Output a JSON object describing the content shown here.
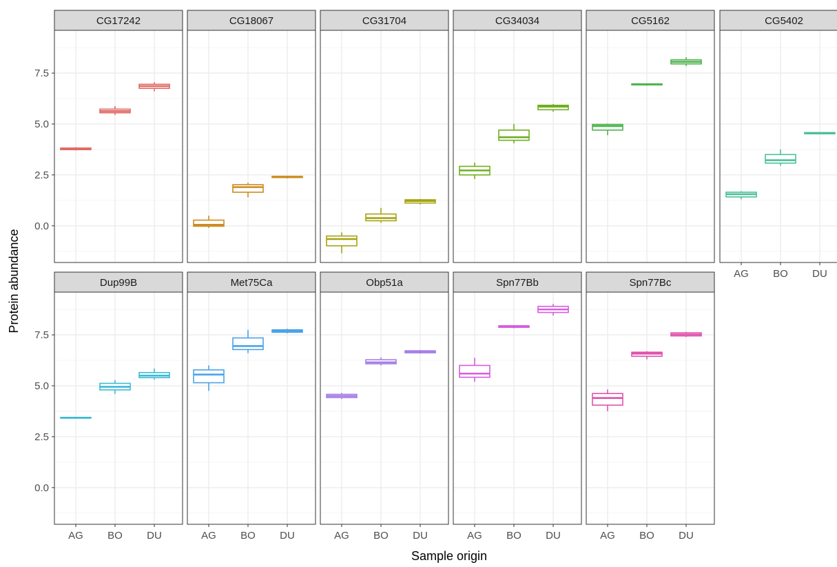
{
  "chart_data": {
    "type": "boxplot",
    "xlabel": "Sample origin",
    "ylabel": "Protein abundance",
    "categories": [
      "AG",
      "BO",
      "DU"
    ],
    "ylim": [
      -1.8,
      9.6
    ],
    "yticks": [
      0.0,
      2.5,
      5.0,
      7.5
    ],
    "ytick_labels": [
      "0.0",
      "2.5",
      "5.0",
      "7.5"
    ],
    "grid": true,
    "panels": [
      {
        "name": "CG17242",
        "color": "#e06a66",
        "boxes": [
          {
            "min": 3.7,
            "q1": 3.74,
            "median": 3.78,
            "q3": 3.82,
            "max": 3.86
          },
          {
            "min": 5.45,
            "q1": 5.55,
            "median": 5.63,
            "q3": 5.73,
            "max": 5.88
          },
          {
            "min": 6.6,
            "q1": 6.75,
            "median": 6.86,
            "q3": 6.95,
            "max": 7.05
          }
        ]
      },
      {
        "name": "CG18067",
        "color": "#cc8a1f",
        "boxes": [
          {
            "min": -0.1,
            "q1": -0.02,
            "median": 0.05,
            "q3": 0.28,
            "max": 0.5
          },
          {
            "min": 1.4,
            "q1": 1.65,
            "median": 1.9,
            "q3": 2.02,
            "max": 2.12
          },
          {
            "min": 2.33,
            "q1": 2.37,
            "median": 2.4,
            "q3": 2.43,
            "max": 2.46
          }
        ]
      },
      {
        "name": "CG31704",
        "color": "#a6a312",
        "boxes": [
          {
            "min": -1.35,
            "q1": -0.98,
            "median": -0.65,
            "q3": -0.5,
            "max": -0.32
          },
          {
            "min": 0.15,
            "q1": 0.25,
            "median": 0.38,
            "q3": 0.58,
            "max": 0.88
          },
          {
            "min": 1.05,
            "q1": 1.12,
            "median": 1.22,
            "q3": 1.28,
            "max": 1.32
          }
        ]
      },
      {
        "name": "CG34034",
        "color": "#6fae1f",
        "boxes": [
          {
            "min": 2.3,
            "q1": 2.5,
            "median": 2.72,
            "q3": 2.92,
            "max": 3.1
          },
          {
            "min": 4.05,
            "q1": 4.2,
            "median": 4.35,
            "q3": 4.7,
            "max": 5.0
          },
          {
            "min": 5.6,
            "q1": 5.7,
            "median": 5.85,
            "q3": 5.92,
            "max": 5.98
          }
        ]
      },
      {
        "name": "CG5162",
        "color": "#4db34d",
        "boxes": [
          {
            "min": 4.45,
            "q1": 4.7,
            "median": 4.9,
            "q3": 4.98,
            "max": 5.02
          },
          {
            "min": 6.88,
            "q1": 6.92,
            "median": 6.95,
            "q3": 6.97,
            "max": 7.0
          },
          {
            "min": 7.85,
            "q1": 7.95,
            "median": 8.05,
            "q3": 8.15,
            "max": 8.28
          }
        ]
      },
      {
        "name": "CG5402",
        "color": "#4dbf9a",
        "boxes": [
          {
            "min": 1.3,
            "q1": 1.42,
            "median": 1.55,
            "q3": 1.65,
            "max": 1.7
          },
          {
            "min": 2.95,
            "q1": 3.08,
            "median": 3.22,
            "q3": 3.5,
            "max": 3.75
          },
          {
            "min": 4.5,
            "q1": 4.52,
            "median": 4.55,
            "q3": 4.58,
            "max": 4.6
          }
        ]
      },
      {
        "name": "Dup99B",
        "color": "#3cbad6",
        "boxes": [
          {
            "min": 3.4,
            "q1": 3.42,
            "median": 3.43,
            "q3": 3.45,
            "max": 3.47
          },
          {
            "min": 4.6,
            "q1": 4.8,
            "median": 4.95,
            "q3": 5.12,
            "max": 5.28
          },
          {
            "min": 5.3,
            "q1": 5.4,
            "median": 5.5,
            "q3": 5.65,
            "max": 5.85
          }
        ]
      },
      {
        "name": "Met75Ca",
        "color": "#4aa3e8",
        "boxes": [
          {
            "min": 4.75,
            "q1": 5.15,
            "median": 5.55,
            "q3": 5.78,
            "max": 6.0
          },
          {
            "min": 6.6,
            "q1": 6.78,
            "median": 6.95,
            "q3": 7.35,
            "max": 7.75
          },
          {
            "min": 7.58,
            "q1": 7.63,
            "median": 7.7,
            "q3": 7.75,
            "max": 7.8
          }
        ]
      },
      {
        "name": "Obp51a",
        "color": "#a67fe6",
        "boxes": [
          {
            "min": 4.35,
            "q1": 4.42,
            "median": 4.5,
            "q3": 4.58,
            "max": 4.65
          },
          {
            "min": 6.0,
            "q1": 6.08,
            "median": 6.15,
            "q3": 6.28,
            "max": 6.4
          },
          {
            "min": 6.58,
            "q1": 6.62,
            "median": 6.68,
            "q3": 6.72,
            "max": 6.76
          }
        ]
      },
      {
        "name": "Spn77Bb",
        "color": "#d65ce0",
        "boxes": [
          {
            "min": 5.2,
            "q1": 5.42,
            "median": 5.6,
            "q3": 6.0,
            "max": 6.38
          },
          {
            "min": 7.82,
            "q1": 7.87,
            "median": 7.92,
            "q3": 7.95,
            "max": 7.98
          },
          {
            "min": 8.45,
            "q1": 8.6,
            "median": 8.75,
            "q3": 8.9,
            "max": 9.02
          }
        ]
      },
      {
        "name": "Spn77Bc",
        "color": "#e052ad",
        "boxes": [
          {
            "min": 3.75,
            "q1": 4.05,
            "median": 4.4,
            "q3": 4.62,
            "max": 4.82
          },
          {
            "min": 6.3,
            "q1": 6.45,
            "median": 6.58,
            "q3": 6.65,
            "max": 6.7
          },
          {
            "min": 7.4,
            "q1": 7.45,
            "median": 7.52,
            "q3": 7.6,
            "max": 7.65
          }
        ]
      }
    ]
  }
}
